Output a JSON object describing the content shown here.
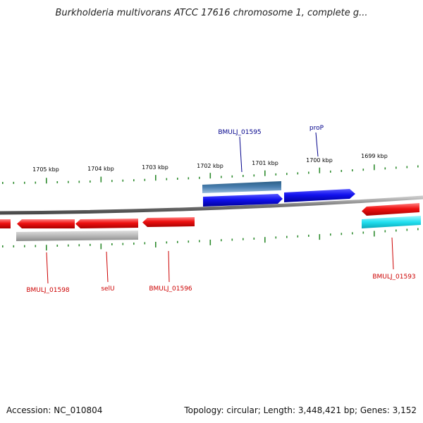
{
  "title": "Burkholderia multivorans ATCC 17616 chromosome 1, complete g...",
  "footer": {
    "accession": "Accession: NC_010804",
    "topology": "Topology: circular; Length: 3,448,421 bp; Genes: 3,152"
  },
  "colors": {
    "backbone": "#8a8a8a",
    "tick": "#2e8b2e",
    "reverse_gene": "#ee1111",
    "forward_gene": "#1111ee",
    "forward_gene_alt": "#4a7fb0",
    "reverse_gene_grey": "#b8b8b8",
    "reverse_gene_cyan": "#22e0f0",
    "label_forward": "#00008b",
    "label_reverse": "#cc0000"
  },
  "ticks": [
    {
      "label": "1705 kbp"
    },
    {
      "label": "1704 kbp"
    },
    {
      "label": "1703 kbp"
    },
    {
      "label": "1702 kbp"
    },
    {
      "label": "1701 kbp"
    },
    {
      "label": "1700 kbp"
    },
    {
      "label": "1699 kbp"
    }
  ],
  "genes": {
    "labels": {
      "BMULJ_01595": "BMULJ_01595",
      "proP": "proP",
      "BMULJ_01598": "BMULJ_01598",
      "selU": "selU",
      "BMULJ_01596": "BMULJ_01596",
      "BMULJ_01593": "BMULJ_01593"
    }
  }
}
